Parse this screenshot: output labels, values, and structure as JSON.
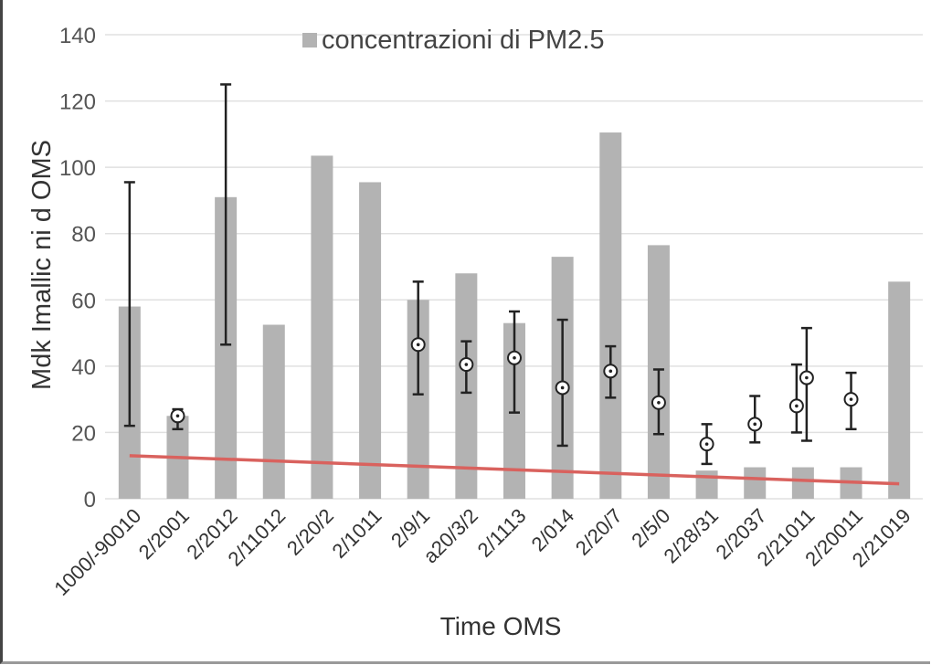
{
  "chart_data": {
    "type": "bar",
    "title": "",
    "legend": {
      "entries": [
        "concentrazioni di PM2.5"
      ],
      "placement": "top"
    },
    "xlabel": "Time OMS",
    "ylabel": "Mdk Imallic ni d OMS",
    "ylim": [
      0,
      140
    ],
    "yticks": [
      0,
      20,
      40,
      60,
      80,
      100,
      120,
      140
    ],
    "grid": true,
    "categories": [
      "1000/-90010",
      "2/2001",
      "2/2012",
      "2/11012",
      "2/20/2",
      "2/1011",
      "2/9/1",
      "a20/3/2",
      "2/1113",
      "2/014",
      "2/20/7",
      "2/5/0",
      "2/28/31",
      "2/2037",
      "2/21011",
      "2/20011",
      "2/21019"
    ],
    "series": [
      {
        "name": "concentrazioni di PM2.5",
        "type": "bar",
        "color": "#b3b3b3",
        "values": [
          58,
          25,
          91,
          52.5,
          103.5,
          95.5,
          60,
          68,
          53,
          73,
          110.5,
          76.5,
          8.5,
          9.5,
          9.5,
          9.5,
          65.5
        ]
      }
    ],
    "error_bars": [
      {
        "category": 0,
        "mean": null,
        "low": 22,
        "high": 95.5
      },
      {
        "category": 1,
        "mean": 25,
        "low": 21,
        "high": 27
      },
      {
        "category": 2,
        "mean": null,
        "low": 46.5,
        "high": 125
      },
      {
        "category": 6,
        "mean": 46.5,
        "low": 31.5,
        "high": 65.5
      },
      {
        "category": 7,
        "mean": 40.5,
        "low": 32,
        "high": 47.5
      },
      {
        "category": 8,
        "mean": 42.5,
        "low": 26,
        "high": 56.5
      },
      {
        "category": 9,
        "mean": 33.5,
        "low": 16,
        "high": 54
      },
      {
        "category": 10,
        "mean": 38.5,
        "low": 30.5,
        "high": 46
      },
      {
        "category": 11,
        "mean": 29,
        "low": 19.5,
        "high": 39
      },
      {
        "category": 12,
        "mean": 16.5,
        "low": 10.5,
        "high": 22.5
      },
      {
        "category": 13,
        "mean": 22.5,
        "low": 17,
        "high": 31
      },
      {
        "category": 14,
        "mean": 28,
        "low": 20,
        "high": 40.5
      },
      {
        "category": 14,
        "mean": 36.5,
        "low": 17.5,
        "high": 51.5
      },
      {
        "category": 15,
        "mean": 30,
        "low": 21,
        "high": 38
      }
    ],
    "trend_line": {
      "color": "#d9625e",
      "start": 13,
      "end": 4.5
    }
  }
}
